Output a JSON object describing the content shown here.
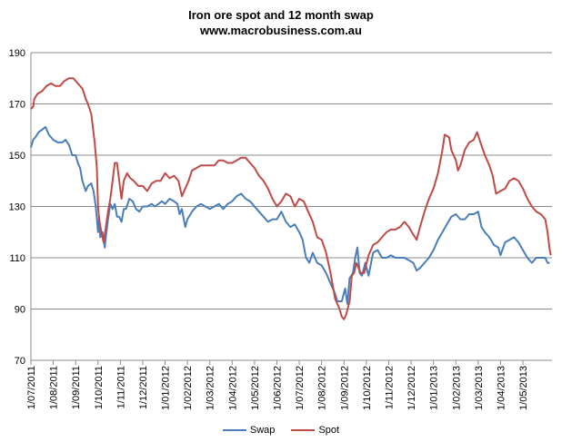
{
  "chart_data": {
    "type": "line",
    "title": "Iron ore spot and 12 month swap",
    "subtitle": "www.macrobusiness.com.au",
    "xlabel": "",
    "ylabel": "",
    "ylim": [
      70,
      190
    ],
    "yticks": [
      70,
      90,
      110,
      130,
      150,
      170,
      190
    ],
    "xticks": [
      "1/07/2011",
      "1/08/2011",
      "1/09/2011",
      "1/10/2011",
      "1/11/2011",
      "1/12/2011",
      "1/01/2012",
      "1/02/2012",
      "1/03/2012",
      "1/04/2012",
      "1/05/2012",
      "1/06/2012",
      "1/07/2012",
      "1/08/2012",
      "1/09/2012",
      "1/10/2012",
      "1/11/2012",
      "1/12/2012",
      "1/01/2013",
      "1/02/2013",
      "1/03/2013",
      "1/04/2013",
      "1/05/2013"
    ],
    "x_unit": "month",
    "grid": "horizontal",
    "legend": "bottom",
    "series": [
      {
        "name": "Swap",
        "color": "#4a7ebb",
        "points": [
          [
            0.0,
            153
          ],
          [
            0.1,
            156
          ],
          [
            0.2,
            157
          ],
          [
            0.35,
            159
          ],
          [
            0.5,
            160
          ],
          [
            0.65,
            161
          ],
          [
            0.8,
            158
          ],
          [
            1.0,
            156
          ],
          [
            1.2,
            155
          ],
          [
            1.4,
            155
          ],
          [
            1.55,
            156
          ],
          [
            1.7,
            154
          ],
          [
            1.85,
            150
          ],
          [
            2.0,
            150
          ],
          [
            2.1,
            147
          ],
          [
            2.2,
            145
          ],
          [
            2.3,
            140
          ],
          [
            2.45,
            136
          ],
          [
            2.55,
            138
          ],
          [
            2.7,
            139
          ],
          [
            2.8,
            136
          ],
          [
            2.9,
            130
          ],
          [
            3.0,
            120
          ],
          [
            3.05,
            126
          ],
          [
            3.1,
            118
          ],
          [
            3.2,
            120
          ],
          [
            3.3,
            114
          ],
          [
            3.35,
            118
          ],
          [
            3.45,
            125
          ],
          [
            3.55,
            131
          ],
          [
            3.65,
            129
          ],
          [
            3.75,
            131
          ],
          [
            3.85,
            126
          ],
          [
            3.95,
            126
          ],
          [
            4.05,
            124
          ],
          [
            4.15,
            129
          ],
          [
            4.25,
            129
          ],
          [
            4.4,
            133
          ],
          [
            4.55,
            132
          ],
          [
            4.7,
            129
          ],
          [
            4.85,
            128
          ],
          [
            5.0,
            130
          ],
          [
            5.2,
            130
          ],
          [
            5.4,
            131
          ],
          [
            5.55,
            130
          ],
          [
            5.7,
            131
          ],
          [
            5.85,
            132
          ],
          [
            6.0,
            131
          ],
          [
            6.2,
            133
          ],
          [
            6.4,
            132
          ],
          [
            6.55,
            131
          ],
          [
            6.65,
            127
          ],
          [
            6.75,
            129
          ],
          [
            6.9,
            122
          ],
          [
            7.0,
            125
          ],
          [
            7.2,
            128
          ],
          [
            7.4,
            130
          ],
          [
            7.6,
            131
          ],
          [
            7.8,
            130
          ],
          [
            8.0,
            129
          ],
          [
            8.2,
            130
          ],
          [
            8.4,
            131
          ],
          [
            8.6,
            129
          ],
          [
            8.8,
            131
          ],
          [
            9.0,
            132
          ],
          [
            9.2,
            134
          ],
          [
            9.4,
            135
          ],
          [
            9.6,
            133
          ],
          [
            9.8,
            132
          ],
          [
            10.0,
            130
          ],
          [
            10.2,
            128
          ],
          [
            10.4,
            126
          ],
          [
            10.6,
            124
          ],
          [
            10.8,
            125
          ],
          [
            11.0,
            125
          ],
          [
            11.2,
            128
          ],
          [
            11.4,
            124
          ],
          [
            11.6,
            122
          ],
          [
            11.8,
            123
          ],
          [
            12.0,
            120
          ],
          [
            12.15,
            117
          ],
          [
            12.3,
            110
          ],
          [
            12.45,
            108
          ],
          [
            12.6,
            112
          ],
          [
            12.8,
            108
          ],
          [
            13.0,
            107
          ],
          [
            13.2,
            104
          ],
          [
            13.4,
            100
          ],
          [
            13.6,
            96
          ],
          [
            13.7,
            93
          ],
          [
            13.9,
            93
          ],
          [
            14.05,
            98
          ],
          [
            14.15,
            92
          ],
          [
            14.25,
            102
          ],
          [
            14.4,
            104
          ],
          [
            14.5,
            110
          ],
          [
            14.6,
            114
          ],
          [
            14.7,
            104
          ],
          [
            14.8,
            103
          ],
          [
            14.95,
            108
          ],
          [
            15.1,
            103
          ],
          [
            15.3,
            112
          ],
          [
            15.5,
            113
          ],
          [
            15.7,
            110
          ],
          [
            15.9,
            110
          ],
          [
            16.1,
            111
          ],
          [
            16.3,
            110
          ],
          [
            16.5,
            110
          ],
          [
            16.7,
            110
          ],
          [
            16.9,
            109
          ],
          [
            17.1,
            108
          ],
          [
            17.25,
            105
          ],
          [
            17.4,
            106
          ],
          [
            17.6,
            108
          ],
          [
            17.8,
            110
          ],
          [
            18.0,
            113
          ],
          [
            18.2,
            117
          ],
          [
            18.4,
            120
          ],
          [
            18.6,
            123
          ],
          [
            18.8,
            126
          ],
          [
            19.0,
            127
          ],
          [
            19.2,
            125
          ],
          [
            19.4,
            125
          ],
          [
            19.6,
            127
          ],
          [
            19.8,
            127
          ],
          [
            20.0,
            128
          ],
          [
            20.15,
            122
          ],
          [
            20.3,
            120
          ],
          [
            20.5,
            118
          ],
          [
            20.7,
            115
          ],
          [
            20.9,
            114
          ],
          [
            21.0,
            111
          ],
          [
            21.2,
            116
          ],
          [
            21.4,
            117
          ],
          [
            21.6,
            118
          ],
          [
            21.8,
            116
          ],
          [
            22.0,
            113
          ],
          [
            22.2,
            110
          ],
          [
            22.4,
            108
          ],
          [
            22.6,
            110
          ],
          [
            22.8,
            110
          ],
          [
            23.0,
            110
          ],
          [
            23.1,
            108
          ],
          [
            23.2,
            108
          ]
        ]
      },
      {
        "name": "Spot",
        "color": "#be4b48",
        "points": [
          [
            0.0,
            168
          ],
          [
            0.1,
            169
          ],
          [
            0.15,
            172
          ],
          [
            0.3,
            174
          ],
          [
            0.5,
            175
          ],
          [
            0.7,
            177
          ],
          [
            0.9,
            178
          ],
          [
            1.1,
            177
          ],
          [
            1.3,
            177
          ],
          [
            1.5,
            179
          ],
          [
            1.7,
            180
          ],
          [
            1.9,
            180
          ],
          [
            2.1,
            178
          ],
          [
            2.3,
            176
          ],
          [
            2.45,
            172
          ],
          [
            2.55,
            170
          ],
          [
            2.7,
            166
          ],
          [
            2.85,
            155
          ],
          [
            2.95,
            145
          ],
          [
            3.0,
            130
          ],
          [
            3.05,
            125
          ],
          [
            3.15,
            120
          ],
          [
            3.25,
            116
          ],
          [
            3.35,
            122
          ],
          [
            3.45,
            128
          ],
          [
            3.55,
            133
          ],
          [
            3.65,
            140
          ],
          [
            3.75,
            147
          ],
          [
            3.85,
            147
          ],
          [
            3.95,
            140
          ],
          [
            4.05,
            133
          ],
          [
            4.15,
            140
          ],
          [
            4.3,
            143
          ],
          [
            4.45,
            141
          ],
          [
            4.6,
            140
          ],
          [
            4.8,
            138
          ],
          [
            5.0,
            138
          ],
          [
            5.2,
            136
          ],
          [
            5.4,
            139
          ],
          [
            5.6,
            140
          ],
          [
            5.8,
            140
          ],
          [
            6.0,
            143
          ],
          [
            6.2,
            141
          ],
          [
            6.4,
            142
          ],
          [
            6.6,
            140
          ],
          [
            6.75,
            134
          ],
          [
            6.9,
            137
          ],
          [
            7.05,
            140
          ],
          [
            7.2,
            144
          ],
          [
            7.4,
            145
          ],
          [
            7.6,
            146
          ],
          [
            7.8,
            146
          ],
          [
            8.0,
            146
          ],
          [
            8.2,
            146
          ],
          [
            8.4,
            148
          ],
          [
            8.6,
            148
          ],
          [
            8.8,
            147
          ],
          [
            9.0,
            147
          ],
          [
            9.2,
            148
          ],
          [
            9.4,
            149
          ],
          [
            9.6,
            149
          ],
          [
            9.8,
            147
          ],
          [
            10.0,
            145
          ],
          [
            10.2,
            142
          ],
          [
            10.4,
            140
          ],
          [
            10.6,
            137
          ],
          [
            10.8,
            133
          ],
          [
            11.0,
            130
          ],
          [
            11.2,
            132
          ],
          [
            11.4,
            135
          ],
          [
            11.6,
            134
          ],
          [
            11.8,
            130
          ],
          [
            12.0,
            133
          ],
          [
            12.2,
            132
          ],
          [
            12.4,
            128
          ],
          [
            12.6,
            124
          ],
          [
            12.8,
            118
          ],
          [
            13.0,
            117
          ],
          [
            13.2,
            112
          ],
          [
            13.4,
            104
          ],
          [
            13.6,
            94
          ],
          [
            13.8,
            90
          ],
          [
            13.9,
            87
          ],
          [
            14.0,
            86
          ],
          [
            14.1,
            88
          ],
          [
            14.25,
            93
          ],
          [
            14.35,
            103
          ],
          [
            14.45,
            104
          ],
          [
            14.55,
            108
          ],
          [
            14.65,
            106
          ],
          [
            14.75,
            104
          ],
          [
            14.9,
            104
          ],
          [
            15.1,
            111
          ],
          [
            15.3,
            115
          ],
          [
            15.5,
            116
          ],
          [
            15.7,
            118
          ],
          [
            15.9,
            120
          ],
          [
            16.1,
            121
          ],
          [
            16.3,
            121
          ],
          [
            16.5,
            122
          ],
          [
            16.7,
            124
          ],
          [
            16.9,
            122
          ],
          [
            17.1,
            119
          ],
          [
            17.25,
            117
          ],
          [
            17.4,
            122
          ],
          [
            17.6,
            128
          ],
          [
            17.8,
            133
          ],
          [
            18.0,
            137
          ],
          [
            18.2,
            143
          ],
          [
            18.4,
            152
          ],
          [
            18.5,
            158
          ],
          [
            18.7,
            157
          ],
          [
            18.8,
            152
          ],
          [
            19.0,
            148
          ],
          [
            19.1,
            144
          ],
          [
            19.2,
            146
          ],
          [
            19.4,
            152
          ],
          [
            19.6,
            155
          ],
          [
            19.8,
            156
          ],
          [
            19.95,
            159
          ],
          [
            20.1,
            155
          ],
          [
            20.3,
            150
          ],
          [
            20.5,
            146
          ],
          [
            20.65,
            142
          ],
          [
            20.8,
            135
          ],
          [
            21.0,
            136
          ],
          [
            21.2,
            137
          ],
          [
            21.4,
            140
          ],
          [
            21.6,
            141
          ],
          [
            21.8,
            140
          ],
          [
            22.0,
            137
          ],
          [
            22.2,
            133
          ],
          [
            22.4,
            130
          ],
          [
            22.6,
            128
          ],
          [
            22.8,
            127
          ],
          [
            23.0,
            125
          ],
          [
            23.1,
            120
          ],
          [
            23.2,
            113
          ],
          [
            23.25,
            111
          ]
        ]
      }
    ]
  }
}
